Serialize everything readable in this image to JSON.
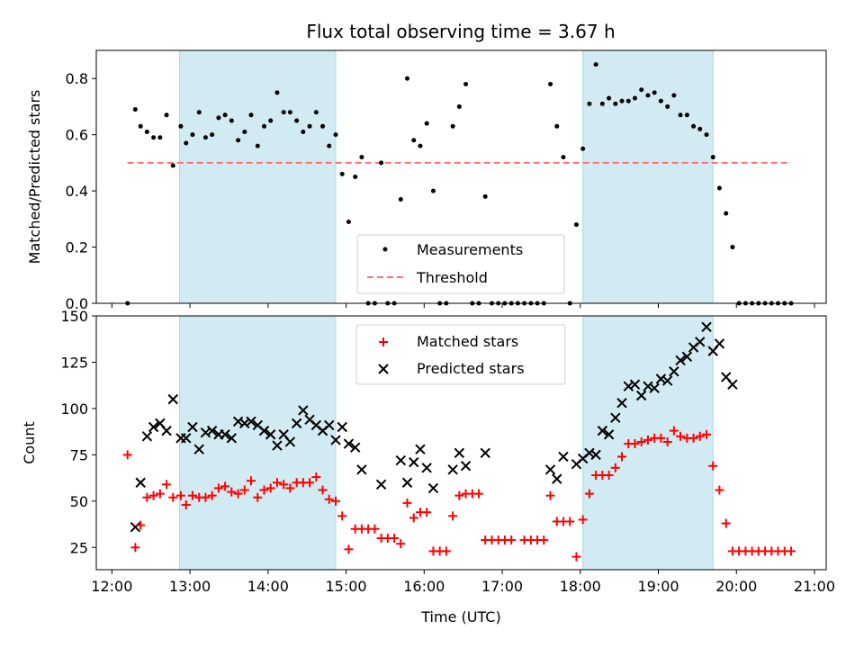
{
  "figure": {
    "title": "Flux total observing time = 3.67 h",
    "shade_color": "#add8e6",
    "shaded_intervals": [
      [
        12.867,
        14.867
      ],
      [
        18.033,
        19.7
      ]
    ],
    "xlabel": "Time (UTC)",
    "x_ticks": [
      12,
      13,
      14,
      15,
      16,
      17,
      18,
      19,
      20,
      21
    ],
    "x_tick_labels": [
      "12:00",
      "13:00",
      "14:00",
      "15:00",
      "16:00",
      "17:00",
      "18:00",
      "19:00",
      "20:00",
      "21:00"
    ],
    "xlim": [
      11.8,
      21.15
    ]
  },
  "chart_data": [
    {
      "type": "scatter",
      "title": "Flux total observing time = 3.67 h",
      "xlabel": "",
      "ylabel": "Matched/Predicted stars",
      "ylim": [
        0,
        0.9
      ],
      "y_ticks": [
        0.0,
        0.2,
        0.4,
        0.6,
        0.8
      ],
      "y_tick_labels": [
        "0.0",
        "0.2",
        "0.4",
        "0.6",
        "0.8"
      ],
      "legend": {
        "placement": "lower-center",
        "entries": [
          "Measurements",
          "Threshold"
        ]
      },
      "threshold": {
        "name": "Threshold",
        "value": 0.5,
        "x_range": [
          12.2,
          20.7
        ],
        "color": "#ff7070"
      },
      "series": [
        {
          "name": "Measurements",
          "color": "#000000",
          "x": [
            12.2,
            12.3,
            12.367,
            12.45,
            12.533,
            12.617,
            12.7,
            12.783,
            12.883,
            12.95,
            13.033,
            13.117,
            13.2,
            13.283,
            13.367,
            13.45,
            13.533,
            13.617,
            13.7,
            13.783,
            13.867,
            13.95,
            14.033,
            14.117,
            14.2,
            14.283,
            14.367,
            14.45,
            14.533,
            14.617,
            14.7,
            14.783,
            14.867,
            14.95,
            15.033,
            15.117,
            15.2,
            15.283,
            15.367,
            15.45,
            15.533,
            15.617,
            15.7,
            15.783,
            15.867,
            15.95,
            16.033,
            16.117,
            16.2,
            16.283,
            16.367,
            16.45,
            16.533,
            16.617,
            16.7,
            16.783,
            16.867,
            16.95,
            17.033,
            17.117,
            17.2,
            17.283,
            17.367,
            17.45,
            17.533,
            17.617,
            17.7,
            17.783,
            17.867,
            17.95,
            18.033,
            18.117,
            18.2,
            18.283,
            18.367,
            18.45,
            18.533,
            18.617,
            18.7,
            18.783,
            18.867,
            18.95,
            19.033,
            19.117,
            19.2,
            19.283,
            19.367,
            19.45,
            19.533,
            19.617,
            19.7,
            19.783,
            19.867,
            19.95,
            20.033,
            20.117,
            20.2,
            20.283,
            20.367,
            20.45,
            20.533,
            20.617,
            20.7
          ],
          "y": [
            0.0,
            0.69,
            0.63,
            0.61,
            0.59,
            0.59,
            0.67,
            0.49,
            0.63,
            0.57,
            0.6,
            0.68,
            0.59,
            0.6,
            0.66,
            0.67,
            0.65,
            0.58,
            0.61,
            0.67,
            0.56,
            0.63,
            0.65,
            0.75,
            0.68,
            0.68,
            0.65,
            0.61,
            0.63,
            0.68,
            0.63,
            0.56,
            0.6,
            0.46,
            0.29,
            0.45,
            0.52,
            0.0,
            0.0,
            0.5,
            0.0,
            0.0,
            0.37,
            0.8,
            0.58,
            0.56,
            0.64,
            0.4,
            0.0,
            0.0,
            0.63,
            0.7,
            0.78,
            0.0,
            0.0,
            0.38,
            0.0,
            0.0,
            0.0,
            0.0,
            0.0,
            0.0,
            0.0,
            0.0,
            0.0,
            0.78,
            0.63,
            0.52,
            0.0,
            0.28,
            0.55,
            0.71,
            0.85,
            0.71,
            0.73,
            0.71,
            0.72,
            0.72,
            0.73,
            0.76,
            0.74,
            0.75,
            0.72,
            0.7,
            0.74,
            0.67,
            0.67,
            0.63,
            0.62,
            0.6,
            0.52,
            0.41,
            0.32,
            0.2,
            0.0,
            0.0,
            0.0,
            0.0,
            0.0,
            0.0,
            0.0,
            0.0,
            0.0
          ]
        }
      ]
    },
    {
      "type": "scatter",
      "title": "",
      "xlabel": "Time (UTC)",
      "ylabel": "Count",
      "ylim": [
        13,
        150
      ],
      "y_ticks": [
        25,
        50,
        75,
        100,
        125,
        150
      ],
      "y_tick_labels": [
        "25",
        "50",
        "75",
        "100",
        "125",
        "150"
      ],
      "legend": {
        "placement": "top-center",
        "entries": [
          "Matched stars",
          "Predicted stars"
        ]
      },
      "series": [
        {
          "name": "Matched stars",
          "marker": "plus",
          "color": "#ff0000",
          "x": [
            12.2,
            12.3,
            12.367,
            12.45,
            12.533,
            12.617,
            12.7,
            12.783,
            12.883,
            12.95,
            13.033,
            13.117,
            13.2,
            13.283,
            13.367,
            13.45,
            13.533,
            13.617,
            13.7,
            13.783,
            13.867,
            13.95,
            14.033,
            14.117,
            14.2,
            14.283,
            14.367,
            14.45,
            14.533,
            14.617,
            14.7,
            14.783,
            14.867,
            14.95,
            15.033,
            15.117,
            15.2,
            15.283,
            15.367,
            15.45,
            15.533,
            15.617,
            15.7,
            15.783,
            15.867,
            15.95,
            16.033,
            16.117,
            16.2,
            16.283,
            16.367,
            16.45,
            16.533,
            16.617,
            16.7,
            16.783,
            16.867,
            16.95,
            17.033,
            17.117,
            17.283,
            17.367,
            17.45,
            17.533,
            17.617,
            17.7,
            17.783,
            17.867,
            17.95,
            18.033,
            18.117,
            18.2,
            18.283,
            18.367,
            18.45,
            18.533,
            18.617,
            18.7,
            18.783,
            18.867,
            18.95,
            19.033,
            19.117,
            19.2,
            19.283,
            19.367,
            19.45,
            19.533,
            19.617,
            19.7,
            19.783,
            19.867,
            19.95,
            20.033,
            20.117,
            20.2,
            20.283,
            20.367,
            20.45,
            20.533,
            20.617,
            20.7
          ],
          "y": [
            75,
            25,
            37,
            52,
            53,
            54,
            59,
            52,
            53,
            48,
            53,
            52,
            52,
            53,
            57,
            58,
            55,
            54,
            56,
            61,
            52,
            56,
            57,
            60,
            59,
            57,
            60,
            60,
            60,
            63,
            56,
            51,
            50,
            42,
            24,
            35,
            35,
            35,
            35,
            30,
            30,
            30,
            27,
            49,
            41,
            44,
            44,
            23,
            23,
            23,
            42,
            53,
            54,
            54,
            54,
            29,
            29,
            29,
            29,
            29,
            29,
            29,
            29,
            29,
            53,
            39,
            39,
            39,
            20,
            40,
            54,
            64,
            64,
            64,
            68,
            74,
            81,
            81,
            82,
            83,
            84,
            84,
            82,
            88,
            85,
            84,
            84,
            85,
            86,
            69,
            56,
            38,
            23,
            23,
            23,
            23,
            23,
            23,
            23,
            23,
            23,
            23
          ]
        },
        {
          "name": "Predicted stars",
          "marker": "x",
          "color": "#000000",
          "x": [
            12.3,
            12.367,
            12.45,
            12.533,
            12.617,
            12.7,
            12.783,
            12.883,
            12.95,
            13.033,
            13.117,
            13.2,
            13.283,
            13.367,
            13.45,
            13.533,
            13.617,
            13.7,
            13.783,
            13.867,
            13.95,
            14.033,
            14.117,
            14.2,
            14.283,
            14.367,
            14.45,
            14.533,
            14.617,
            14.7,
            14.783,
            14.867,
            14.95,
            15.033,
            15.117,
            15.2,
            15.45,
            15.7,
            15.783,
            15.867,
            15.95,
            16.033,
            16.117,
            16.367,
            16.45,
            16.533,
            16.783,
            17.617,
            17.7,
            17.783,
            17.95,
            18.033,
            18.117,
            18.2,
            18.283,
            18.367,
            18.45,
            18.533,
            18.617,
            18.7,
            18.783,
            18.867,
            18.95,
            19.033,
            19.117,
            19.2,
            19.283,
            19.367,
            19.45,
            19.533,
            19.617,
            19.7,
            19.783,
            19.867,
            19.95
          ],
          "y": [
            36,
            60,
            85,
            90,
            92,
            88,
            105,
            84,
            84,
            90,
            78,
            87,
            88,
            86,
            86,
            84,
            93,
            92,
            93,
            91,
            88,
            86,
            80,
            86,
            82,
            92,
            99,
            94,
            91,
            88,
            91,
            83,
            90,
            81,
            79,
            67,
            59,
            72,
            60,
            71,
            78,
            68,
            57,
            67,
            76,
            69,
            76,
            67,
            62,
            74,
            70,
            73,
            76,
            75,
            88,
            86,
            95,
            103,
            112,
            113,
            107,
            112,
            111,
            116,
            115,
            120,
            126,
            128,
            133,
            136,
            144,
            131,
            135,
            117,
            113
          ]
        }
      ]
    }
  ]
}
